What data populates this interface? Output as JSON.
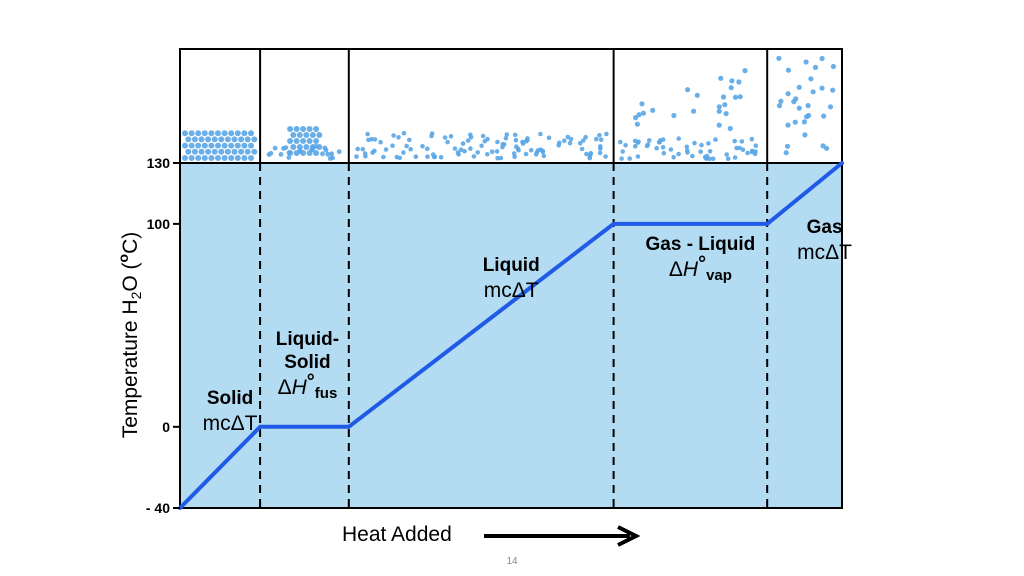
{
  "chart_data": {
    "type": "line",
    "xlabel": "Heat Added",
    "ylabel_parts": [
      "Temperature H",
      "2",
      "O (",
      "o",
      "C)"
    ],
    "y_ticks": [
      {
        "value": -40,
        "label": "- 40"
      },
      {
        "value": 0,
        "label": "0"
      },
      {
        "value": 100,
        "label": "100"
      },
      {
        "value": 130,
        "label": "130"
      }
    ],
    "ylim": [
      -40,
      130
    ],
    "x_range": [
      0,
      100
    ],
    "series": [
      {
        "color": "#1f5be6",
        "points": [
          {
            "x": 0,
            "y": -40
          },
          {
            "x": 12.1,
            "y": 0
          },
          {
            "x": 25.5,
            "y": 0
          },
          {
            "x": 65.5,
            "y": 100
          },
          {
            "x": 88.7,
            "y": 100
          },
          {
            "x": 100,
            "y": 130
          }
        ]
      }
    ],
    "region_boundaries": [
      12.1,
      25.5,
      65.5,
      88.7
    ],
    "regions": [
      {
        "title_lines": [
          "Solid"
        ],
        "formula": "mcΔT",
        "formula_type": "mct"
      },
      {
        "title_lines": [
          "Liquid-",
          "Solid"
        ],
        "formula": "ΔH°fus",
        "formula_type": "dh",
        "dh_sub": "fus"
      },
      {
        "title_lines": [
          "Liquid"
        ],
        "formula": "mcΔT",
        "formula_type": "mct"
      },
      {
        "title_lines": [
          "Gas - Liquid"
        ],
        "formula": "ΔH°vap",
        "formula_type": "dh",
        "dh_sub": "vap"
      },
      {
        "title_lines": [
          "Gas"
        ],
        "formula": "mcΔT",
        "formula_type": "mct"
      }
    ],
    "plot_fill": "#b3dcf2",
    "particle_color": "#5aa6e6"
  },
  "page_number": "14"
}
